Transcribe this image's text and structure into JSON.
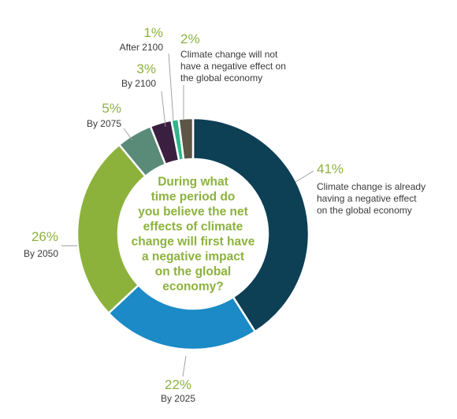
{
  "chart_data": {
    "type": "pie",
    "donut": true,
    "center_text": [
      "During what",
      "time period do",
      "you believe the net",
      "effects of climate",
      "change will first have",
      "a negative impact",
      "on the global",
      "economy?"
    ],
    "slices": [
      {
        "value_label": "41%",
        "value": 41,
        "color": "#0d3f55",
        "label_lines": [
          "Climate change is already",
          "having a negative effect",
          "on the global economy"
        ]
      },
      {
        "value_label": "22%",
        "value": 22,
        "color": "#1b8ac6",
        "label_lines": [
          "By 2025"
        ]
      },
      {
        "value_label": "26%",
        "value": 26,
        "color": "#8cb23c",
        "label_lines": [
          "By 2050"
        ]
      },
      {
        "value_label": "5%",
        "value": 5,
        "color": "#5a8a78",
        "label_lines": [
          "By 2075"
        ]
      },
      {
        "value_label": "3%",
        "value": 3,
        "color": "#3b1f40",
        "label_lines": [
          "By 2100"
        ]
      },
      {
        "value_label": "1%",
        "value": 1,
        "color": "#31b58a",
        "label_lines": [
          "After 2100"
        ]
      },
      {
        "value_label": "2%",
        "value": 2,
        "color": "#5d5646",
        "label_lines": [
          "Climate change will not",
          "have a negative effect on",
          "the global economy"
        ]
      }
    ]
  }
}
